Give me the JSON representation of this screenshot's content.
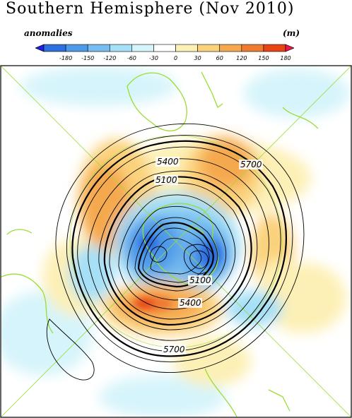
{
  "header": {
    "title": "Southern Hemisphere (Nov 2010)",
    "left_label": "anomalies",
    "right_label": "(m)"
  },
  "colorbar": {
    "ticks": [
      "-180",
      "-150",
      "-120",
      "-60",
      "-30",
      "0",
      "30",
      "60",
      "120",
      "150",
      "180"
    ],
    "colors": [
      "#1e1ee6",
      "#2f6fe0",
      "#4f9ae8",
      "#77bdf0",
      "#a6e0f7",
      "#d6f4fb",
      "#ffffff",
      "#fdf0b6",
      "#fbd27c",
      "#f5a94f",
      "#ef7b30",
      "#e84416",
      "#e8174c"
    ]
  },
  "map": {
    "projection": "polar stereographic (South Pole)",
    "contour_labels": [
      "5700",
      "5400",
      "5100",
      "5100",
      "5400",
      "5700"
    ],
    "colors": {
      "coast": "#99dd33",
      "contour": "#000000",
      "positive_anomaly": "#ef7b30",
      "strong_positive": "#e84416",
      "negative_anomaly": "#4f9ae8",
      "strong_negative": "#2f6fe0"
    }
  }
}
